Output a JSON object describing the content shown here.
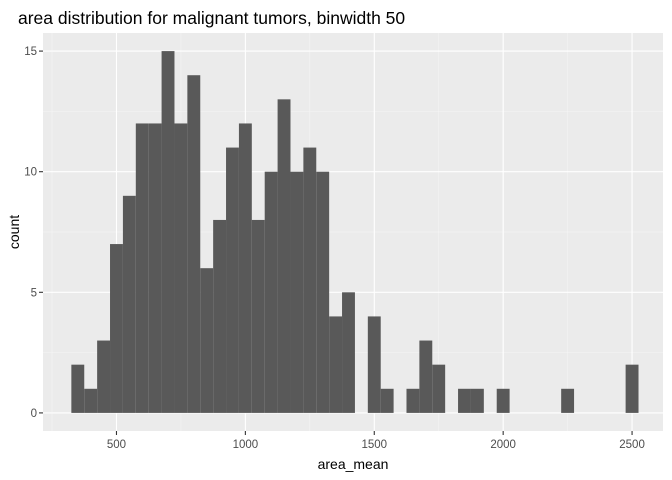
{
  "chart_data": {
    "type": "bar",
    "title": "area distribution for malignant tumors, binwidth 50",
    "xlabel": "area_mean",
    "ylabel": "count",
    "binwidth": 50,
    "xlim": [
      215,
      2620
    ],
    "ylim": [
      -0.75,
      15.75
    ],
    "x_ticks": [
      500,
      1000,
      1500,
      2000,
      2500
    ],
    "y_ticks": [
      0,
      5,
      10,
      15
    ],
    "x_tick_labels": [
      "500",
      "1000",
      "1500",
      "2000",
      "2500"
    ],
    "y_tick_labels": [
      "0",
      "5",
      "10",
      "15"
    ],
    "grid": true,
    "bin_centers": [
      350,
      400,
      450,
      500,
      550,
      600,
      650,
      700,
      750,
      800,
      850,
      900,
      950,
      1000,
      1050,
      1100,
      1150,
      1200,
      1250,
      1300,
      1350,
      1400,
      1450,
      1500,
      1550,
      1600,
      1650,
      1700,
      1750,
      1800,
      1850,
      1900,
      1950,
      2000,
      2050,
      2100,
      2150,
      2200,
      2250,
      2300,
      2350,
      2400,
      2450,
      2500
    ],
    "values": [
      2,
      1,
      3,
      7,
      9,
      12,
      12,
      15,
      12,
      14,
      6,
      8,
      11,
      12,
      8,
      10,
      13,
      10,
      11,
      10,
      4,
      5,
      0,
      4,
      1,
      0,
      1,
      3,
      2,
      0,
      1,
      1,
      0,
      1,
      0,
      0,
      0,
      0,
      1,
      0,
      0,
      0,
      0,
      2
    ],
    "colors": {
      "bar": "#595959",
      "panel": "#ebebeb",
      "grid_major": "#ffffff",
      "grid_minor": "#f5f5f5",
      "tick": "#333333",
      "tick_label": "#4d4d4d"
    }
  }
}
